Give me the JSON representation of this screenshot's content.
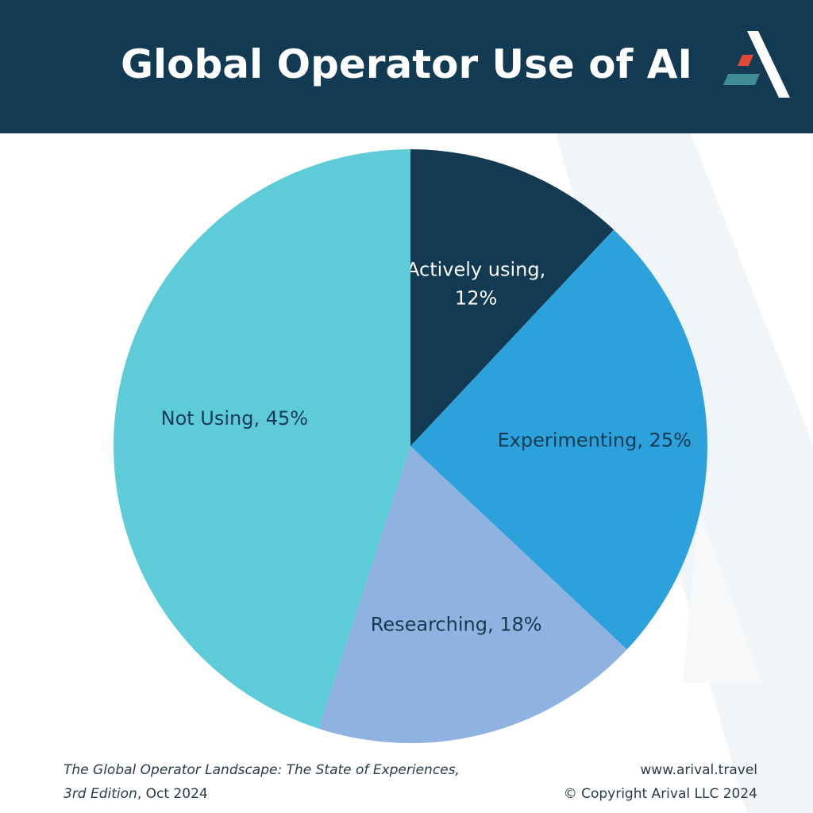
{
  "colors": {
    "header_bg": "#123a52",
    "slice_actively_using": "#123a52",
    "slice_experimenting": "#2da1db",
    "slice_researching": "#8fb2e0",
    "slice_not_using": "#5ecbd9",
    "logo_red": "#e04a3a",
    "logo_teal": "#3f8c95"
  },
  "header": {
    "title": "Global Operator Use of AI",
    "logo_icon": "arival-logo-icon"
  },
  "chart_data": {
    "type": "pie",
    "title": "Global Operator Use of AI",
    "start_angle_deg": 0,
    "direction": "clockwise",
    "slices": [
      {
        "name": "Actively using",
        "value": 12,
        "label_line1": "Actively using,",
        "label_line2": "12%",
        "color": "#123a52",
        "label_color": "#ffffff"
      },
      {
        "name": "Experimenting",
        "value": 25,
        "label_line1": "Experimenting, 25%",
        "label_line2": "",
        "color": "#2da1db",
        "label_color": "#123a52"
      },
      {
        "name": "Researching",
        "value": 18,
        "label_line1": "Researching, 18%",
        "label_line2": "",
        "color": "#8fb2e0",
        "label_color": "#123a52"
      },
      {
        "name": "Not Using",
        "value": 45,
        "label_line1": "Not Using, 45%",
        "label_line2": "",
        "color": "#5ecbd9",
        "label_color": "#123a52"
      }
    ]
  },
  "footer": {
    "source_line1": "The Global Operator Landscape: The State of Experiences,",
    "source_line2_italic": "3rd Edition",
    "source_line2_tail": ", Oct 2024",
    "website": "www.arival.travel",
    "copyright": "© Copyright Arival LLC 2024"
  }
}
